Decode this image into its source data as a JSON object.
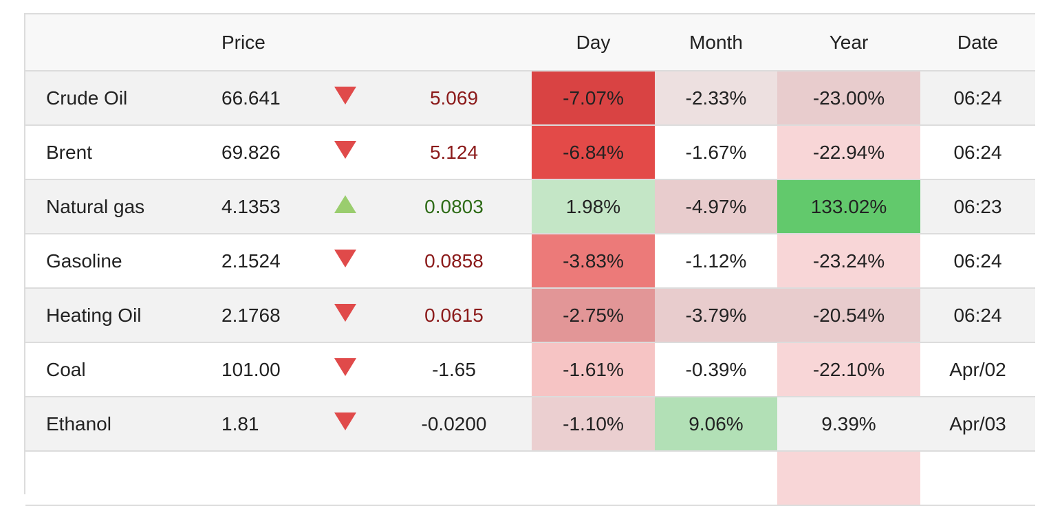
{
  "header": {
    "price": "Price",
    "day": "Day",
    "month": "Month",
    "year": "Year",
    "date": "Date"
  },
  "rows": [
    {
      "name": "Crude Oil",
      "price": "66.641",
      "direction": "down",
      "change": "5.069",
      "change_color": "neg",
      "day": "-7.07%",
      "day_bg": "#d94343",
      "month": "-2.33%",
      "month_bg": "#ede0e0",
      "year": "-23.00%",
      "year_bg": "#e8cccd",
      "date": "06:24"
    },
    {
      "name": "Brent",
      "price": "69.826",
      "direction": "down",
      "change": "5.124",
      "change_color": "neg",
      "day": "-6.84%",
      "day_bg": "#e34a48",
      "month": "-1.67%",
      "month_bg": "#ffffff",
      "year": "-22.94%",
      "year_bg": "#f8d6d7",
      "date": "06:24"
    },
    {
      "name": "Natural gas",
      "price": "4.1353",
      "direction": "up",
      "change": "0.0803",
      "change_color": "pos",
      "day": "1.98%",
      "day_bg": "#c4e6c6",
      "month": "-4.97%",
      "month_bg": "#e8cccd",
      "year": "133.02%",
      "year_bg": "#62c96c",
      "date": "06:23"
    },
    {
      "name": "Gasoline",
      "price": "2.1524",
      "direction": "down",
      "change": "0.0858",
      "change_color": "neg",
      "day": "-3.83%",
      "day_bg": "#ec7a79",
      "month": "-1.12%",
      "month_bg": "#ffffff",
      "year": "-23.24%",
      "year_bg": "#f8d6d7",
      "date": "06:24"
    },
    {
      "name": "Heating Oil",
      "price": "2.1768",
      "direction": "down",
      "change": "0.0615",
      "change_color": "neg",
      "day": "-2.75%",
      "day_bg": "#e29697",
      "month": "-3.79%",
      "month_bg": "#e8cccd",
      "year": "-20.54%",
      "year_bg": "#e8cccd",
      "date": "06:24"
    },
    {
      "name": "Coal",
      "price": "101.00",
      "direction": "down",
      "change": "-1.65",
      "change_color": "neu",
      "day": "-1.61%",
      "day_bg": "#f6c4c4",
      "month": "-0.39%",
      "month_bg": "#ffffff",
      "year": "-22.10%",
      "year_bg": "#f8d6d7",
      "date": "Apr/02"
    },
    {
      "name": "Ethanol",
      "price": "1.81",
      "direction": "down",
      "change": "-0.0200",
      "change_color": "neu",
      "day": "-1.10%",
      "day_bg": "#ebcfd0",
      "month": "9.06%",
      "month_bg": "#b2e0b6",
      "year": "9.39%",
      "year_bg": "#f2f2f2",
      "date": "Apr/03"
    },
    {
      "name": "",
      "price": "",
      "direction": "",
      "change": "",
      "change_color": "neu",
      "day": "",
      "day_bg": "#ffffff",
      "month": "",
      "month_bg": "#ffffff",
      "year": "",
      "year_bg": "#f8d6d7",
      "date": ""
    }
  ]
}
